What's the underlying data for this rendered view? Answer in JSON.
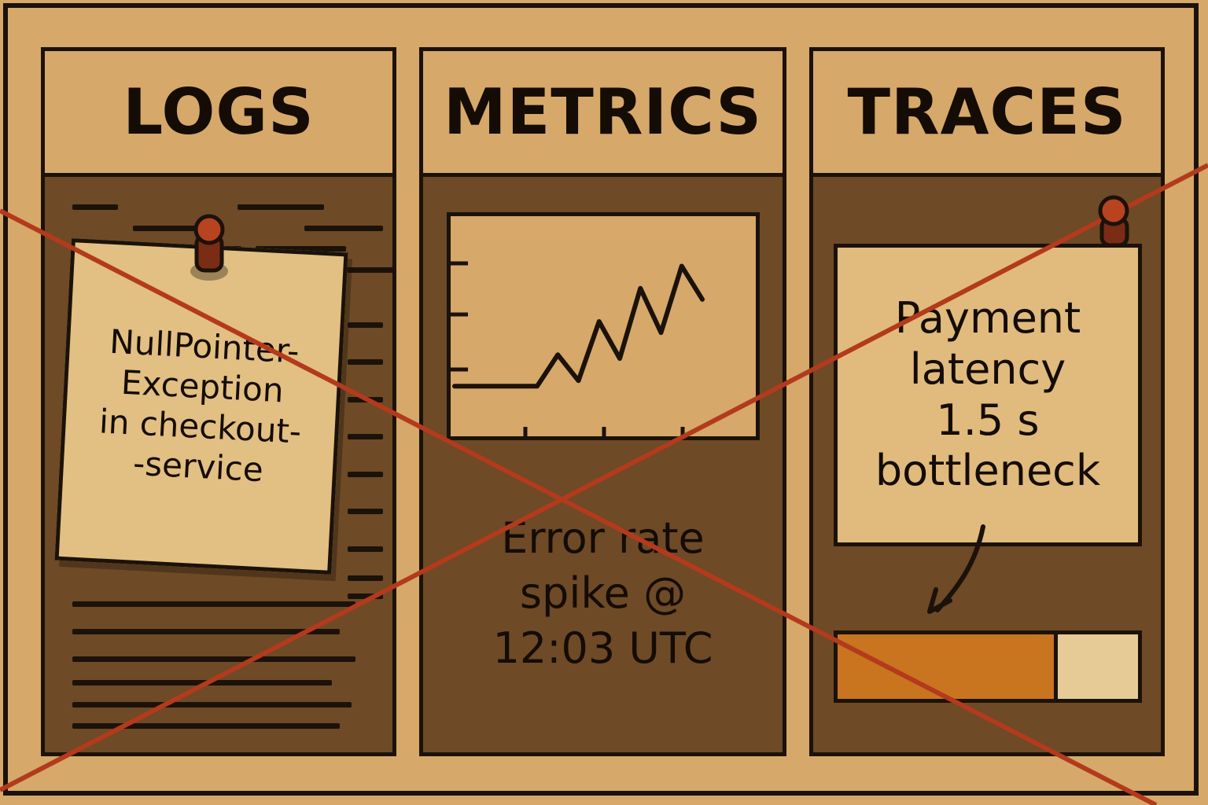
{
  "panels": [
    {
      "id": "logs",
      "title": "LOGS",
      "note": "NullPointer-\nException\nin checkout-\n-service"
    },
    {
      "id": "metrics",
      "title": "METRICS",
      "annotation": "Error rate\nspike @\n12:03 UTC"
    },
    {
      "id": "traces",
      "title": "TRACES",
      "annotation": "Payment\nlatency\n1.5 s\nbottleneck",
      "bar_fraction": 0.72
    }
  ],
  "chart_data": {
    "type": "line",
    "title": "",
    "xlabel": "",
    "ylabel": "",
    "x": [
      0,
      1,
      2,
      3,
      4,
      5,
      6,
      7,
      8,
      9,
      10,
      11,
      12
    ],
    "values": [
      0.5,
      0.5,
      0.5,
      0.5,
      0.5,
      2.2,
      0.8,
      4.0,
      2.0,
      5.8,
      3.4,
      7.0,
      5.2
    ],
    "ylim": [
      0,
      8
    ],
    "grid": false,
    "legend": "none"
  },
  "colors": {
    "board": "#d6a869",
    "panel_body": "#6e4a26",
    "ink": "#1b120a",
    "string": "#b33a1c",
    "pin": "#b8431f",
    "bar_fill": "#c9741f"
  },
  "icons": {
    "pin_logs": "push-pin-icon",
    "pin_traces": "push-pin-icon",
    "arrow_traces": "curved-arrow-icon"
  }
}
